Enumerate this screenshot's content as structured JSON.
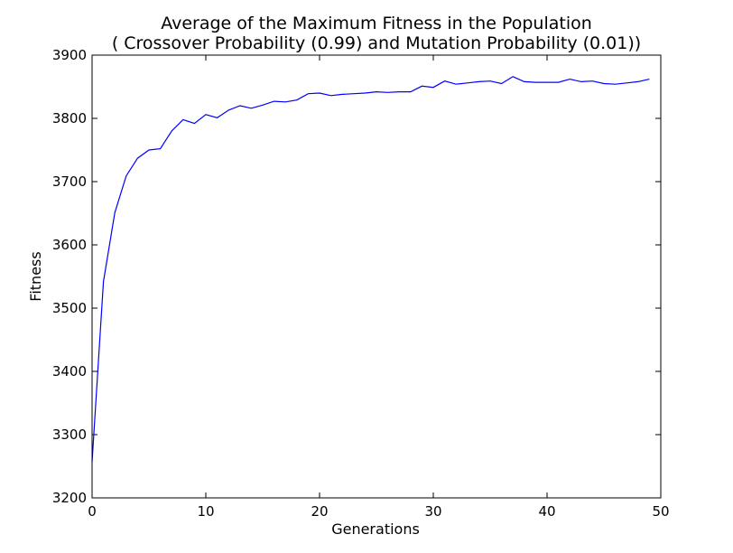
{
  "chart_data": {
    "type": "line",
    "title_line1": "Average of the Maximum Fitness in the Population",
    "title_line2": "( Crossover Probability (0.99) and Mutation Probability (0.01))",
    "xlabel": "Generations",
    "ylabel": "Fitness",
    "xlim": [
      0,
      50
    ],
    "ylim": [
      3200,
      3900
    ],
    "xticks": [
      0,
      10,
      20,
      30,
      40,
      50
    ],
    "yticks": [
      3200,
      3300,
      3400,
      3500,
      3600,
      3700,
      3800,
      3900
    ],
    "grid": false,
    "line_color": "#0000ff",
    "x": [
      0,
      1,
      2,
      3,
      4,
      5,
      6,
      7,
      8,
      9,
      10,
      11,
      12,
      13,
      14,
      15,
      16,
      17,
      18,
      19,
      20,
      21,
      22,
      23,
      24,
      25,
      26,
      27,
      28,
      29,
      30,
      31,
      32,
      33,
      34,
      35,
      36,
      37,
      38,
      39,
      40,
      41,
      42,
      43,
      44,
      45,
      46,
      47,
      48,
      49
    ],
    "values": [
      3257,
      3542,
      3651,
      3709,
      3737,
      3750,
      3752,
      3780,
      3798,
      3792,
      3806,
      3801,
      3813,
      3820,
      3816,
      3821,
      3827,
      3826,
      3829,
      3839,
      3840,
      3836,
      3838,
      3839,
      3840,
      3842,
      3841,
      3842,
      3842,
      3851,
      3849,
      3859,
      3854,
      3856,
      3858,
      3859,
      3855,
      3866,
      3858,
      3857,
      3857,
      3857,
      3862,
      3858,
      3859,
      3855,
      3854,
      3856,
      3858,
      3862
    ]
  }
}
